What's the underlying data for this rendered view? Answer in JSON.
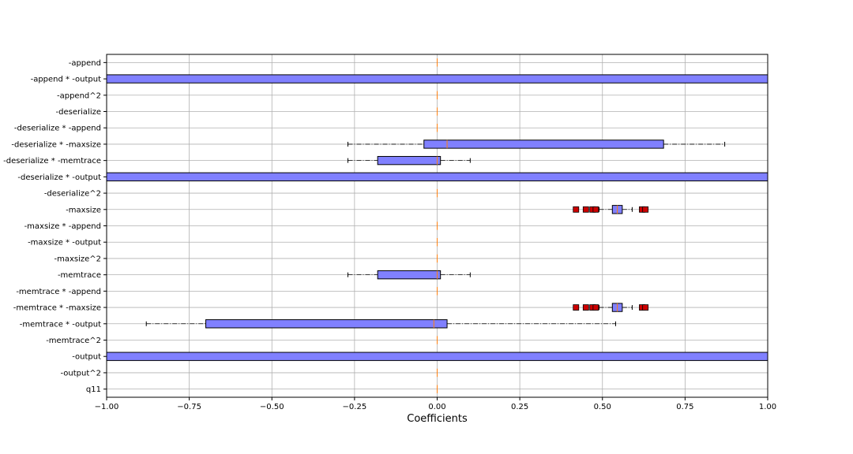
{
  "chart_data": {
    "type": "boxplot",
    "orientation": "horizontal",
    "xlabel": "Coefficients",
    "xlim": [
      -1.0,
      1.0
    ],
    "xticks": [
      -1.0,
      -0.75,
      -0.5,
      -0.25,
      0.0,
      0.25,
      0.5,
      0.75,
      1.0
    ],
    "xtick_labels": [
      "−1.00",
      "−0.75",
      "−0.50",
      "−0.25",
      "0.00",
      "0.25",
      "0.50",
      "0.75",
      "1.00"
    ],
    "grid": true,
    "colors": {
      "box_fill": "#8080ff",
      "median": "#ff7f0e",
      "outlier_fill": "#cc0000",
      "grid": "#b0b0b0"
    },
    "categories": [
      "-append",
      "-append * -output",
      "-append^2",
      "-deserialize",
      "-deserialize * -append",
      "-deserialize * -maxsize",
      "-deserialize * -memtrace",
      "-deserialize * -output",
      "-deserialize^2",
      "-maxsize",
      "-maxsize * -append",
      "-maxsize * -output",
      "-maxsize^2",
      "-memtrace",
      "-memtrace * -append",
      "-memtrace * -maxsize",
      "-memtrace * -output",
      "-memtrace^2",
      "-output",
      "-output^2",
      "q11"
    ],
    "boxes": [
      {
        "whislo": 0,
        "q1": 0,
        "med": 0,
        "q3": 0,
        "whishi": 0,
        "fliers": []
      },
      {
        "whislo": -1.0,
        "q1": -1.0,
        "med": 1.0,
        "q3": 1.0,
        "whishi": 1.0,
        "fliers": []
      },
      {
        "whislo": 0,
        "q1": 0,
        "med": 0,
        "q3": 0,
        "whishi": 0,
        "fliers": []
      },
      {
        "whislo": 0,
        "q1": 0,
        "med": 0,
        "q3": 0,
        "whishi": 0,
        "fliers": []
      },
      {
        "whislo": 0,
        "q1": 0,
        "med": 0,
        "q3": 0,
        "whishi": 0,
        "fliers": []
      },
      {
        "whislo": -0.27,
        "q1": -0.04,
        "med": 0.03,
        "q3": 0.685,
        "whishi": 0.87,
        "fliers": []
      },
      {
        "whislo": -0.27,
        "q1": -0.18,
        "med": 0.0,
        "q3": 0.01,
        "whishi": 0.1,
        "fliers": []
      },
      {
        "whislo": -1.0,
        "q1": -1.0,
        "med": 1.0,
        "q3": 1.0,
        "whishi": 1.0,
        "fliers": []
      },
      {
        "whislo": 0,
        "q1": 0,
        "med": 0,
        "q3": 0,
        "whishi": 0,
        "fliers": []
      },
      {
        "whislo": 0.49,
        "q1": 0.53,
        "med": 0.545,
        "q3": 0.56,
        "whishi": 0.59,
        "fliers": [
          0.42,
          0.45,
          0.47,
          0.48,
          0.62,
          0.63
        ]
      },
      {
        "whislo": 0,
        "q1": 0,
        "med": 0,
        "q3": 0,
        "whishi": 0,
        "fliers": []
      },
      {
        "whislo": 0,
        "q1": 0,
        "med": 0,
        "q3": 0,
        "whishi": 0,
        "fliers": []
      },
      {
        "whislo": 0,
        "q1": 0,
        "med": 0,
        "q3": 0,
        "whishi": 0,
        "fliers": []
      },
      {
        "whislo": -0.27,
        "q1": -0.18,
        "med": 0.0,
        "q3": 0.01,
        "whishi": 0.1,
        "fliers": []
      },
      {
        "whislo": 0,
        "q1": 0,
        "med": 0,
        "q3": 0,
        "whishi": 0,
        "fliers": []
      },
      {
        "whislo": 0.49,
        "q1": 0.53,
        "med": 0.545,
        "q3": 0.56,
        "whishi": 0.59,
        "fliers": [
          0.42,
          0.45,
          0.47,
          0.48,
          0.62,
          0.63
        ]
      },
      {
        "whislo": -0.88,
        "q1": -0.7,
        "med": -0.01,
        "q3": 0.03,
        "whishi": 0.54,
        "fliers": []
      },
      {
        "whislo": 0,
        "q1": 0,
        "med": 0,
        "q3": 0,
        "whishi": 0,
        "fliers": []
      },
      {
        "whislo": -1.0,
        "q1": -1.0,
        "med": 1.0,
        "q3": 1.0,
        "whishi": 1.0,
        "fliers": []
      },
      {
        "whislo": 0,
        "q1": 0,
        "med": 0,
        "q3": 0,
        "whishi": 0,
        "fliers": []
      },
      {
        "whislo": 0,
        "q1": 0,
        "med": 0,
        "q3": 0,
        "whishi": 0,
        "fliers": []
      }
    ]
  }
}
